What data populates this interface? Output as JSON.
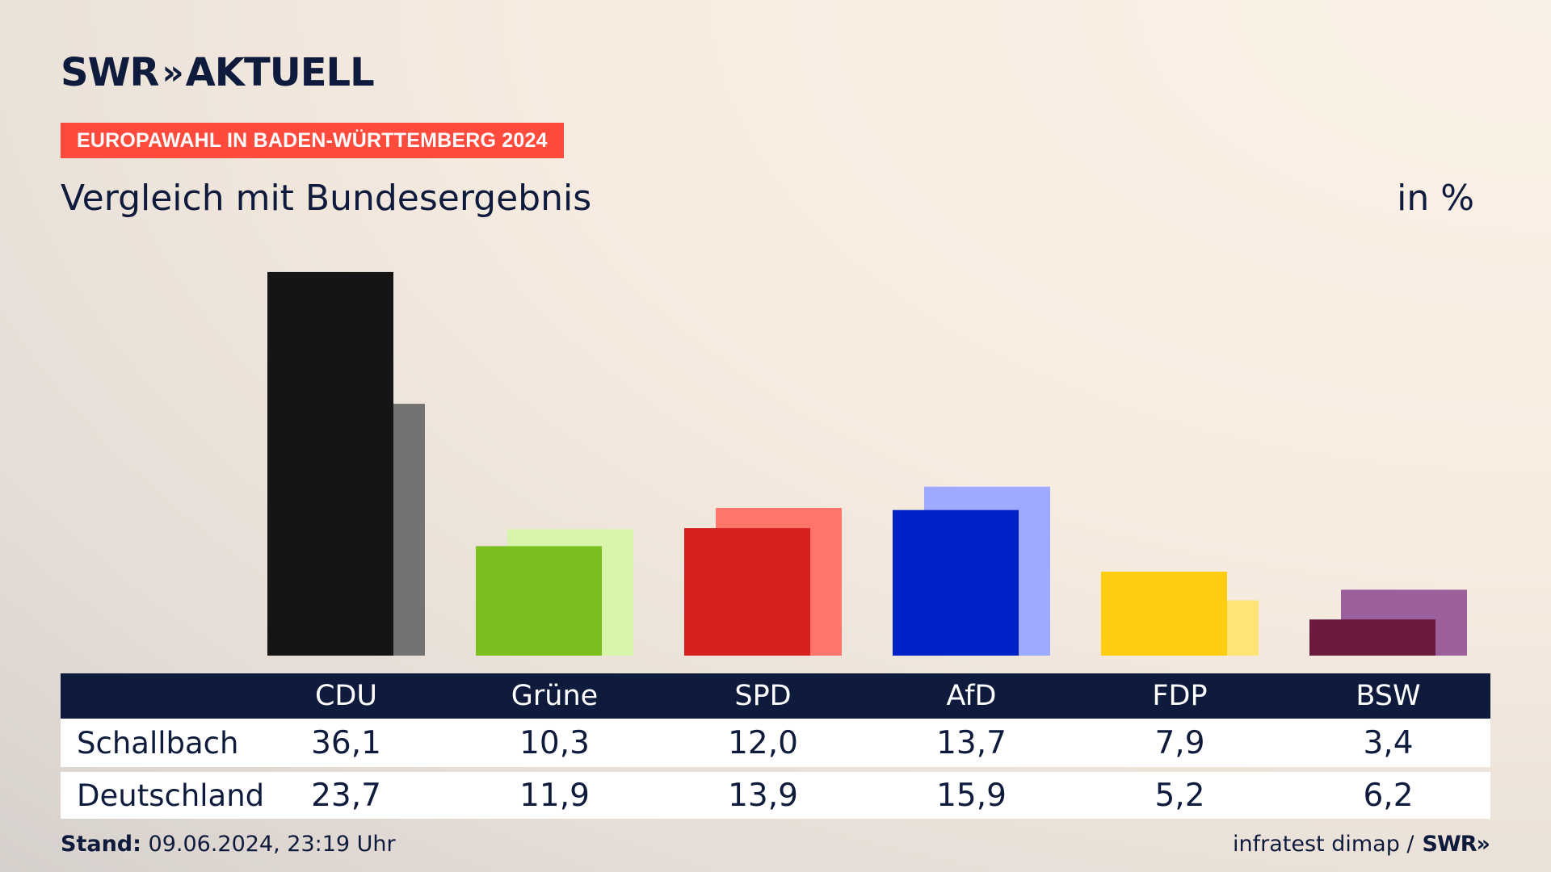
{
  "brand": {
    "logo_text_1": "SWR",
    "logo_arrows": "»",
    "logo_text_2": "AKTUELL"
  },
  "badge": "EUROPAWAHL IN BADEN-WÜRTTEMBERG 2024",
  "subtitle": "Vergleich mit Bundesergebnis",
  "unit": "in %",
  "footer": {
    "stand_label": "Stand:",
    "stand_value": "09.06.2024, 23:19 Uhr",
    "source": "infratest dimap /",
    "source_logo": "SWR»"
  },
  "colors": {
    "background": "#f7ece0",
    "navy": "#0e1b3c",
    "badge": "#ff4a3c"
  },
  "chart_data": {
    "type": "bar",
    "categories": [
      "CDU",
      "Grüne",
      "SPD",
      "AfD",
      "FDP",
      "BSW"
    ],
    "series": [
      {
        "name": "Schallbach",
        "values": [
          36.1,
          10.3,
          12.0,
          13.7,
          7.9,
          3.4
        ],
        "labels": [
          "36,1",
          "10,3",
          "12,0",
          "13,7",
          "7,9",
          "3,4"
        ],
        "colors": [
          "#151515",
          "#7abf1e",
          "#d72121",
          "#0020c8",
          "#ffcd0f",
          "#6b1a3e"
        ]
      },
      {
        "name": "Deutschland",
        "values": [
          23.7,
          11.9,
          13.9,
          15.9,
          5.2,
          6.2
        ],
        "labels": [
          "23,7",
          "11,9",
          "13,9",
          "15,9",
          "5,2",
          "6,2"
        ],
        "colors": [
          "#747371",
          "#d8f5ab",
          "#ff756b",
          "#9daaff",
          "#ffe375",
          "#9b5f9b"
        ]
      }
    ],
    "ylim": [
      0,
      40
    ],
    "legend": "table-below",
    "grid": false
  }
}
